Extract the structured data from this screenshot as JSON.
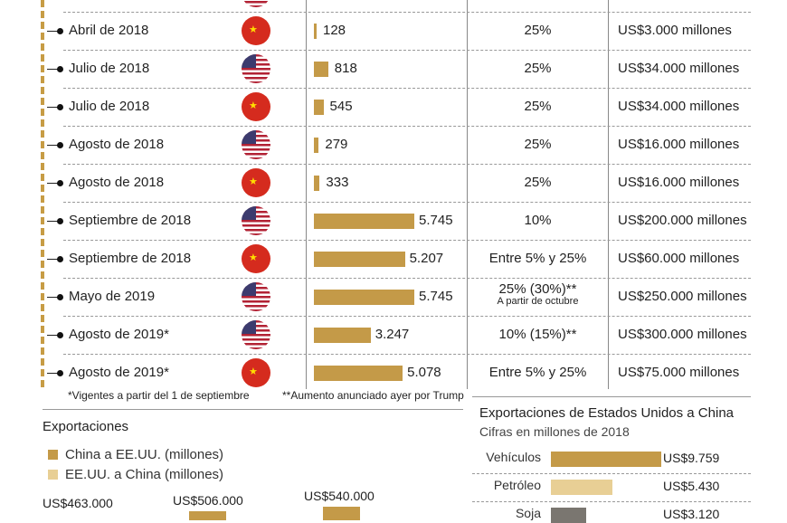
{
  "table": {
    "rows": [
      {
        "date": "",
        "country": "us",
        "value": null,
        "rate": "",
        "amount": ""
      },
      {
        "date": "Abril de 2018",
        "country": "china",
        "value": 128,
        "value_label": "128",
        "rate": "25%",
        "amount": "US$3.000 millones"
      },
      {
        "date": "Julio de 2018",
        "country": "us",
        "value": 818,
        "value_label": "818",
        "rate": "25%",
        "amount": "US$34.000 millones"
      },
      {
        "date": "Julio de 2018",
        "country": "china",
        "value": 545,
        "value_label": "545",
        "rate": "25%",
        "amount": "US$34.000 millones"
      },
      {
        "date": "Agosto de 2018",
        "country": "us",
        "value": 279,
        "value_label": "279",
        "rate": "25%",
        "amount": "US$16.000 millones"
      },
      {
        "date": "Agosto de 2018",
        "country": "china",
        "value": 333,
        "value_label": "333",
        "rate": "25%",
        "amount": "US$16.000 millones"
      },
      {
        "date": "Septiembre de 2018",
        "country": "us",
        "value": 5745,
        "value_label": "5.745",
        "rate": "10%",
        "amount": "US$200.000 millones"
      },
      {
        "date": "Septiembre de 2018",
        "country": "china",
        "value": 5207,
        "value_label": "5.207",
        "rate": "Entre 5% y 25%",
        "amount": "US$60.000 millones"
      },
      {
        "date": "Mayo de 2019",
        "country": "us",
        "value": 5745,
        "value_label": "5.745",
        "rate": "25% (30%)**",
        "rate_note": "A partir de octubre",
        "amount": "US$250.000 millones"
      },
      {
        "date": "Agosto de 2019*",
        "country": "us",
        "value": 3247,
        "value_label": "3.247",
        "rate": "10% (15%)**",
        "amount": "US$300.000 millones"
      },
      {
        "date": "Agosto de 2019*",
        "country": "china",
        "value": 5078,
        "value_label": "5.078",
        "rate": "Entre 5% y 25%",
        "amount": "US$75.000 millones"
      }
    ],
    "footnote1": "*Vigentes a partir del 1 de septiembre",
    "footnote2": "**Aumento anunciado ayer por Trump"
  },
  "colors": {
    "gold": "#c49a48",
    "light_gold": "#e8cf95",
    "gray": "#7a7670"
  },
  "chart_data": [
    {
      "type": "bar",
      "title": "Exportaciones",
      "legend": [
        "China a EE.UU. (millones)",
        "EE.UU. a China (millones)"
      ],
      "value_labels": [
        "US$463.000",
        "US$506.000",
        "US$540.000"
      ]
    },
    {
      "type": "bar",
      "title": "Exportaciones de Estados Unidos a China",
      "subtitle": "Cifras en millones de 2018",
      "categories": [
        "Vehículos",
        "Petróleo",
        "Soja"
      ],
      "values": [
        9759,
        5430,
        3120
      ],
      "value_labels": [
        "US$9.759",
        "US$5.430",
        "US$3.120"
      ]
    }
  ]
}
